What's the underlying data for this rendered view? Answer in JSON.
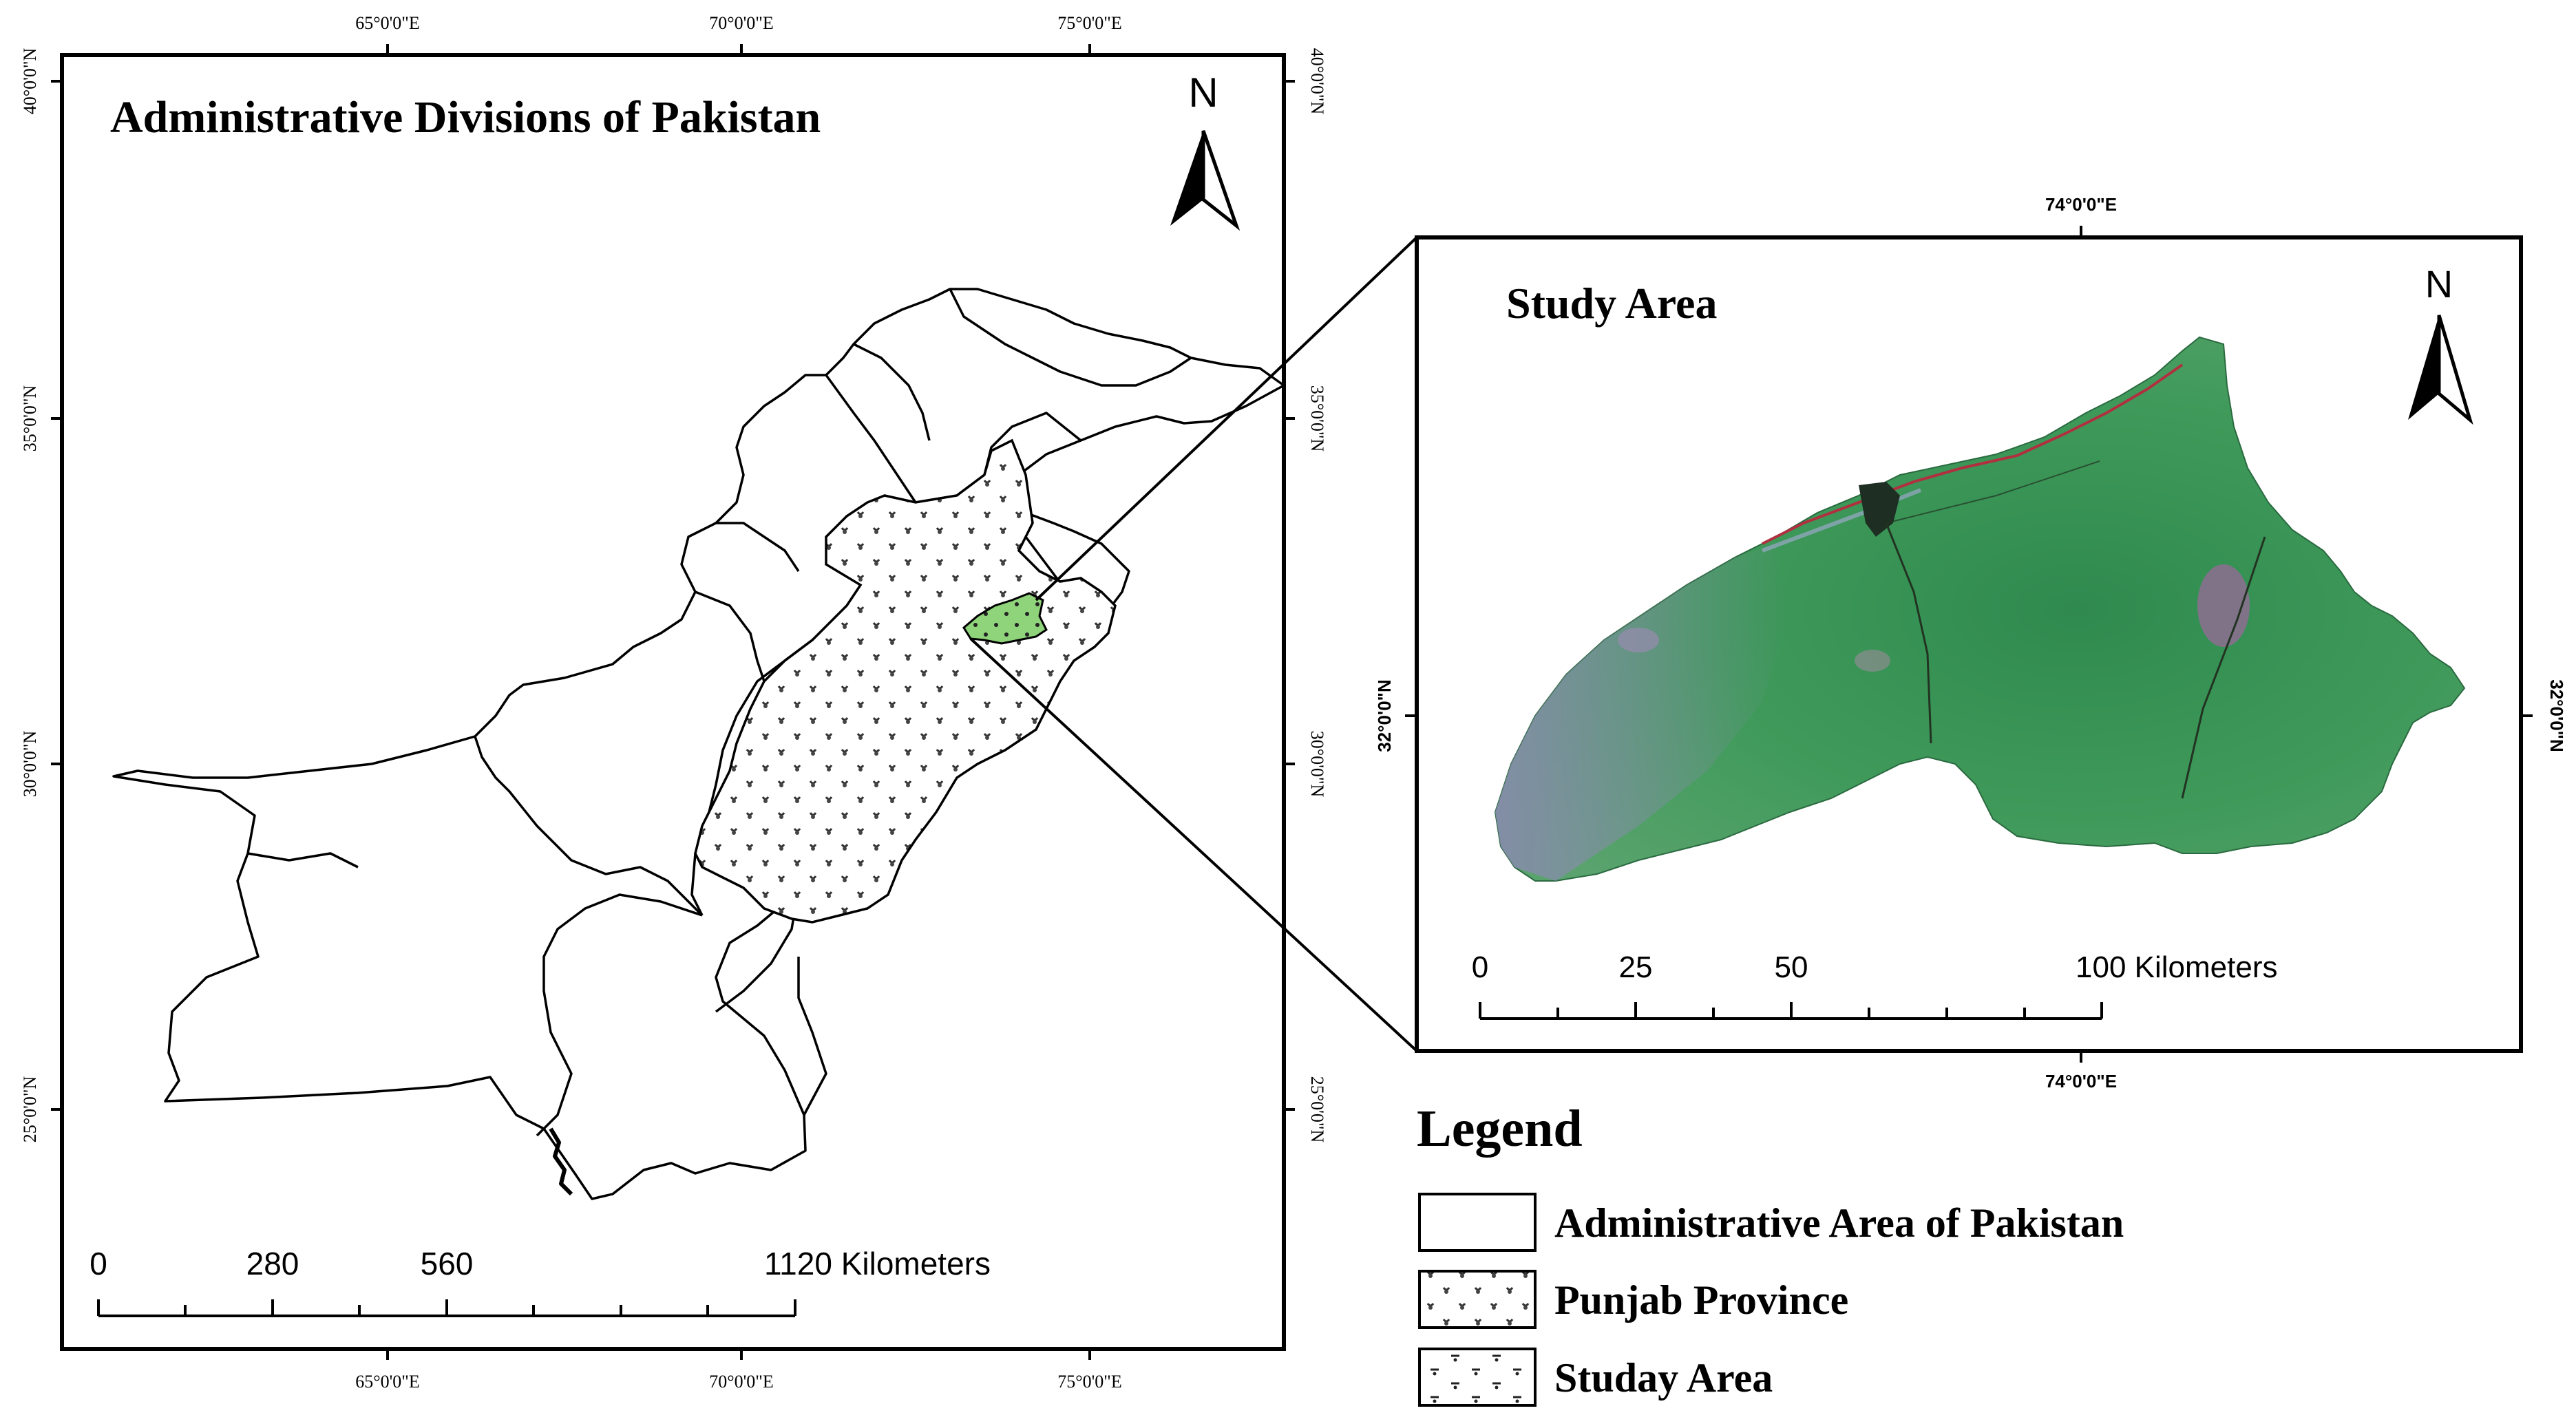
{
  "left_map": {
    "title": "Administrative Divisions of Pakistan",
    "north_label": "N",
    "top_ticks": [
      "65°0'0\"E",
      "70°0'0\"E",
      "75°0'0\"E"
    ],
    "bottom_ticks": [
      "65°0'0\"E",
      "70°0'0\"E",
      "75°0'0\"E"
    ],
    "left_ticks": [
      "40°0'0\"N",
      "35°0'0\"N",
      "30°0'0\"N",
      "25°0'0\"N"
    ],
    "right_ticks": [
      "40°0'0\"N",
      "35°0'0\"N",
      "30°0'0\"N",
      "25°0'0\"N"
    ],
    "scale": {
      "l0": "0",
      "l1": "280",
      "l2": "560",
      "l3": "1120 Kilometers"
    }
  },
  "right_map": {
    "title": "Study Area",
    "north_label": "N",
    "top_tick": "74°0'0\"E",
    "bottom_tick": "74°0'0\"E",
    "left_tick": "32°0'0\"N",
    "right_tick": "32°0'0\"N",
    "scale": {
      "l0": "0",
      "l1": "25",
      "l2": "50",
      "l3": "100 Kilometers"
    }
  },
  "legend": {
    "title": "Legend",
    "items": [
      {
        "label": "Administrative Area of Pakistan"
      },
      {
        "label": "Punjab Province"
      },
      {
        "label": "Studay Area"
      }
    ]
  },
  "colors": {
    "frame": "#000000",
    "study_fill": "#8fd47a",
    "satellite_green": "#3f9a5a",
    "satellite_purple": "#9a6a9a"
  }
}
